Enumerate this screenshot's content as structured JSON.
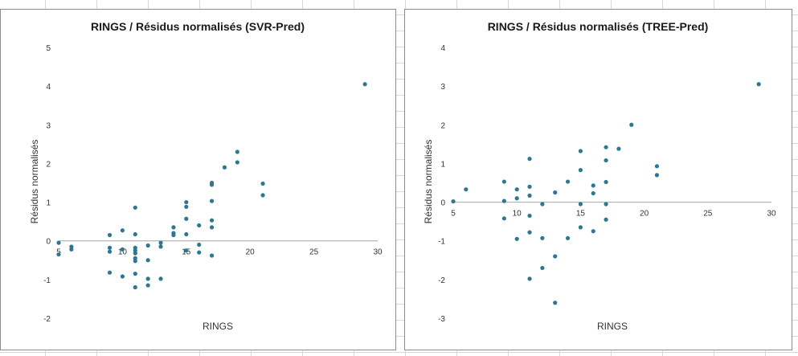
{
  "chart_data": [
    {
      "type": "scatter",
      "title": "RINGS / Résidus normalisés (SVR-Pred)",
      "xlabel": "RINGS",
      "ylabel": "Résidus normalisés",
      "xlim": [
        5,
        30
      ],
      "ylim": [
        -2,
        5
      ],
      "xticks": [
        "5",
        "10",
        "15",
        "20",
        "25",
        "30"
      ],
      "yticks": [
        "-2",
        "-1",
        "0",
        "1",
        "2",
        "3",
        "4",
        "5"
      ],
      "marker_color": "#2e7691",
      "points": [
        [
          5,
          -0.05
        ],
        [
          5,
          -0.35
        ],
        [
          6,
          -0.15
        ],
        [
          6,
          -0.22
        ],
        [
          9,
          0.15
        ],
        [
          9,
          -0.18
        ],
        [
          9,
          -0.28
        ],
        [
          9,
          -0.82
        ],
        [
          10,
          0.27
        ],
        [
          10,
          -0.22
        ],
        [
          10,
          -0.92
        ],
        [
          11,
          0.86
        ],
        [
          11,
          0.17
        ],
        [
          11,
          -0.18
        ],
        [
          11,
          -0.25
        ],
        [
          11,
          -0.32
        ],
        [
          11,
          -0.45
        ],
        [
          11,
          -0.52
        ],
        [
          11,
          -0.85
        ],
        [
          11,
          -1.2
        ],
        [
          12,
          -0.12
        ],
        [
          12,
          -0.5
        ],
        [
          12,
          -0.98
        ],
        [
          12,
          -1.15
        ],
        [
          13,
          -0.05
        ],
        [
          13,
          -0.15
        ],
        [
          13,
          -0.98
        ],
        [
          14,
          0.35
        ],
        [
          14,
          0.2
        ],
        [
          14,
          0.15
        ],
        [
          15,
          1.0
        ],
        [
          15,
          0.88
        ],
        [
          15,
          0.57
        ],
        [
          15,
          0.17
        ],
        [
          15,
          -0.25
        ],
        [
          16,
          0.4
        ],
        [
          16,
          -0.1
        ],
        [
          16,
          -0.3
        ],
        [
          17,
          1.5
        ],
        [
          17,
          1.45
        ],
        [
          17,
          1.03
        ],
        [
          17,
          0.53
        ],
        [
          17,
          0.35
        ],
        [
          17,
          -0.38
        ],
        [
          18,
          1.9
        ],
        [
          19,
          2.3
        ],
        [
          19,
          2.03
        ],
        [
          21,
          1.48
        ],
        [
          21,
          1.18
        ],
        [
          29,
          4.05
        ]
      ]
    },
    {
      "type": "scatter",
      "title": "RINGS / Résidus normalisés (TREE-Pred)",
      "xlabel": "RINGS",
      "ylabel": "Résidus normalisés",
      "xlim": [
        5,
        30
      ],
      "ylim": [
        -3,
        4
      ],
      "xticks": [
        "5",
        "10",
        "15",
        "20",
        "25",
        "30"
      ],
      "yticks": [
        "-3",
        "-2",
        "-1",
        "0",
        "1",
        "2",
        "3",
        "4"
      ],
      "marker_color": "#2e7691",
      "points": [
        [
          5,
          0.02
        ],
        [
          6,
          0.33
        ],
        [
          9,
          0.53
        ],
        [
          9,
          0.03
        ],
        [
          9,
          -0.42
        ],
        [
          10,
          0.33
        ],
        [
          10,
          0.1
        ],
        [
          10,
          -0.95
        ],
        [
          11,
          1.12
        ],
        [
          11,
          0.4
        ],
        [
          11,
          0.17
        ],
        [
          11,
          -0.35
        ],
        [
          11,
          -0.78
        ],
        [
          11,
          -1.98
        ],
        [
          12,
          -0.05
        ],
        [
          12,
          -0.93
        ],
        [
          12,
          -1.7
        ],
        [
          13,
          0.25
        ],
        [
          13,
          -1.4
        ],
        [
          13,
          -2.6
        ],
        [
          14,
          0.53
        ],
        [
          14,
          -0.93
        ],
        [
          15,
          1.32
        ],
        [
          15,
          0.83
        ],
        [
          15,
          -0.05
        ],
        [
          15,
          -0.65
        ],
        [
          16,
          0.43
        ],
        [
          16,
          0.23
        ],
        [
          16,
          -0.75
        ],
        [
          17,
          1.42
        ],
        [
          17,
          1.08
        ],
        [
          17,
          0.52
        ],
        [
          17,
          -0.05
        ],
        [
          17,
          -0.45
        ],
        [
          18,
          1.38
        ],
        [
          19,
          2.0
        ],
        [
          21,
          0.93
        ],
        [
          21,
          0.7
        ],
        [
          29,
          3.05
        ]
      ]
    }
  ]
}
